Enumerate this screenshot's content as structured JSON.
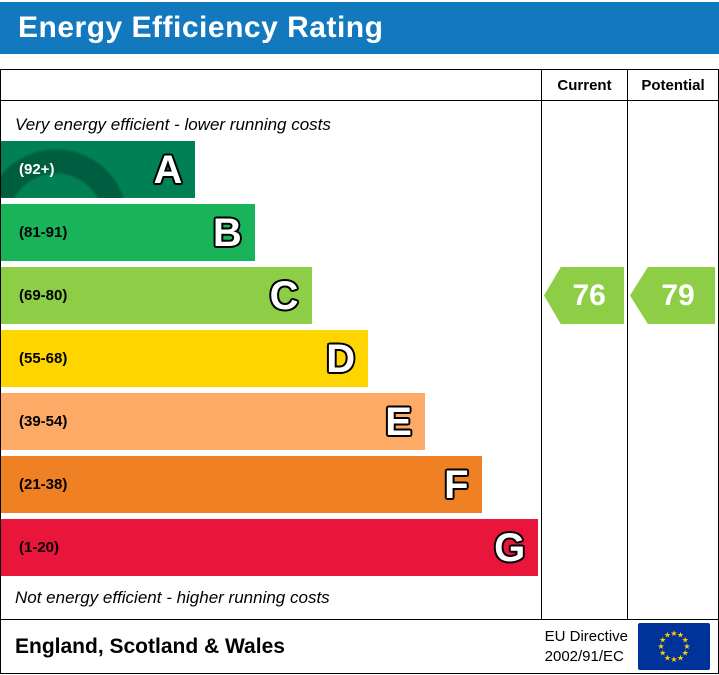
{
  "title": "Energy Efficiency Rating",
  "colors": {
    "header": "#1279be",
    "flag_bg": "#003399",
    "flag_stars": "#ffcc00"
  },
  "table": {
    "current_header": "Current",
    "potential_header": "Potential"
  },
  "notes": {
    "top": "Very energy efficient - lower running costs",
    "bottom": "Not energy efficient - higher running costs"
  },
  "bands": [
    {
      "letter": "A",
      "range": "(92+)",
      "color": "#008054",
      "text_color": "#ffffff",
      "width_pct": 36
    },
    {
      "letter": "B",
      "range": "(81-91)",
      "color": "#19b459",
      "text_color": "#000000",
      "width_pct": 47
    },
    {
      "letter": "C",
      "range": "(69-80)",
      "color": "#8dce46",
      "text_color": "#000000",
      "width_pct": 57.5
    },
    {
      "letter": "D",
      "range": "(55-68)",
      "color": "#ffd500",
      "text_color": "#000000",
      "width_pct": 68
    },
    {
      "letter": "E",
      "range": "(39-54)",
      "color": "#fcaa65",
      "text_color": "#000000",
      "width_pct": 78.5
    },
    {
      "letter": "F",
      "range": "(21-38)",
      "color": "#ef8023",
      "text_color": "#000000",
      "width_pct": 89
    },
    {
      "letter": "G",
      "range": "(1-20)",
      "color": "#e9153b",
      "text_color": "#000000",
      "width_pct": 99.5
    }
  ],
  "ratings": {
    "current": {
      "value": "76",
      "color": "#8dce46",
      "band_index": 2
    },
    "potential": {
      "value": "79",
      "color": "#8dce46",
      "band_index": 2
    }
  },
  "footer": {
    "region": "England, Scotland & Wales",
    "directive_line1": "EU Directive",
    "directive_line2": "2002/91/EC"
  },
  "chart_data": {
    "type": "bar",
    "title": "Energy Efficiency Rating",
    "categories": [
      "A",
      "B",
      "C",
      "D",
      "E",
      "F",
      "G"
    ],
    "band_ranges": [
      "92+",
      "81-91",
      "69-80",
      "55-68",
      "39-54",
      "21-38",
      "1-20"
    ],
    "band_colors": [
      "#008054",
      "#19b459",
      "#8dce46",
      "#ffd500",
      "#fcaa65",
      "#ef8023",
      "#e9153b"
    ],
    "bar_lengths_pct": [
      36,
      47,
      57.5,
      68,
      78.5,
      89,
      99.5
    ],
    "current_rating": 76,
    "potential_rating": 79,
    "current_band": "C",
    "potential_band": "C",
    "annotations": [
      "Very energy efficient - lower running costs",
      "Not energy efficient - higher running costs"
    ],
    "footer": "England, Scotland & Wales",
    "directive": "EU Directive 2002/91/EC"
  }
}
